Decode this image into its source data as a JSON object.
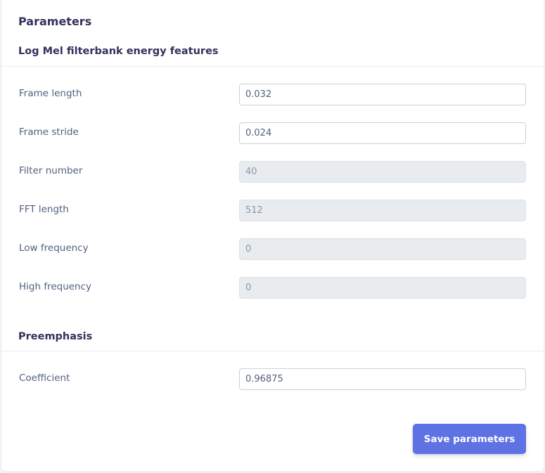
{
  "panel": {
    "title": "Parameters"
  },
  "mfe": {
    "heading": "Log Mel filterbank energy features",
    "frame_length": {
      "label": "Frame length",
      "value": "0.032"
    },
    "frame_stride": {
      "label": "Frame stride",
      "value": "0.024"
    },
    "filter_number": {
      "label": "Filter number",
      "value": "40"
    },
    "fft_length": {
      "label": "FFT length",
      "value": "512"
    },
    "low_frequency": {
      "label": "Low frequency",
      "value": "0"
    },
    "high_frequency": {
      "label": "High frequency",
      "value": "0"
    }
  },
  "preemphasis": {
    "heading": "Preemphasis",
    "coefficient": {
      "label": "Coefficient",
      "value": "0.96875"
    }
  },
  "actions": {
    "save_label": "Save parameters"
  },
  "colors": {
    "accent": "#5e72e4",
    "heading_text": "#32325d",
    "label_text": "#525f7f",
    "disabled_field": "#e9ecef"
  }
}
